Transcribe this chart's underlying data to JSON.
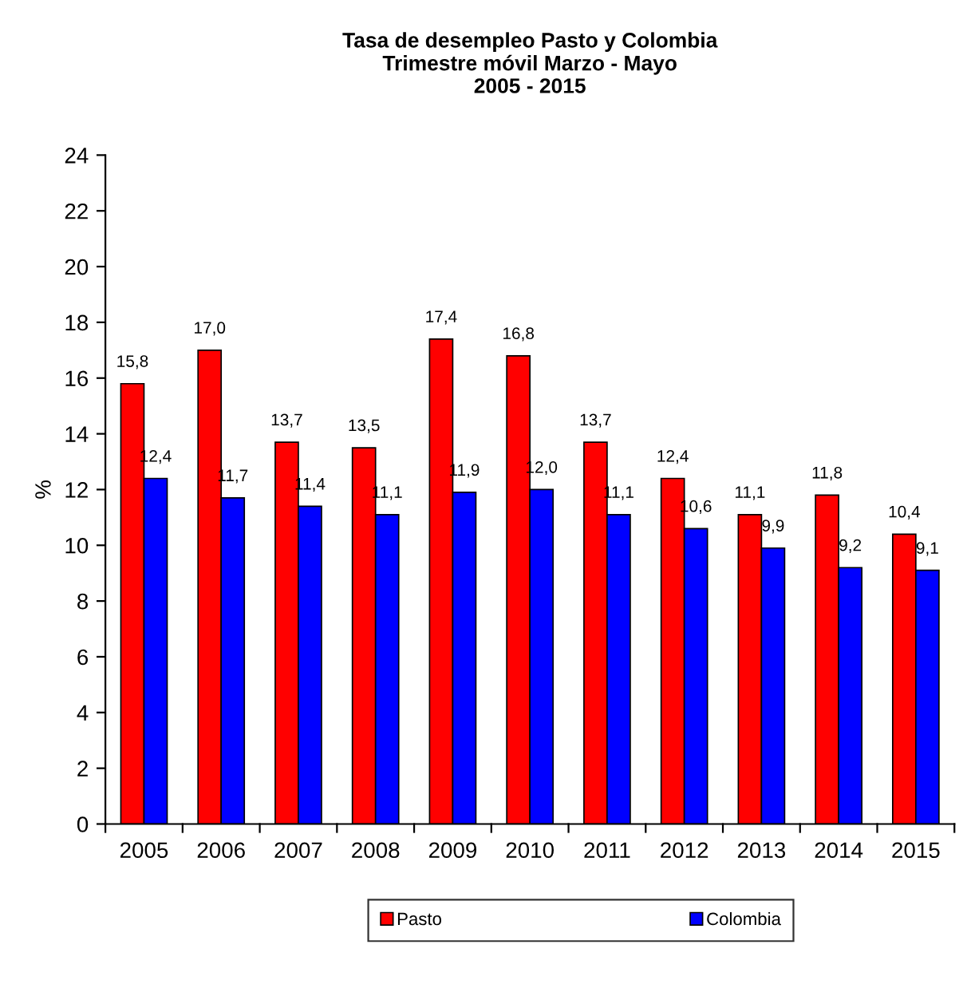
{
  "chart_data": {
    "type": "bar",
    "title": "Tasa de desempleo Pasto y Colombia\nTrimestre móvil Marzo - Mayo\n2005 - 2015",
    "ylabel": "%",
    "categories": [
      "2005",
      "2006",
      "2007",
      "2008",
      "2009",
      "2010",
      "2011",
      "2012",
      "2013",
      "2014",
      "2015"
    ],
    "series": [
      {
        "name": "Pasto",
        "color": "#ff0000",
        "values": [
          15.8,
          17.0,
          13.7,
          13.5,
          17.4,
          16.8,
          13.7,
          12.4,
          11.1,
          11.8,
          10.4
        ],
        "value_labels": [
          "15,8",
          "17,0",
          "13,7",
          "13,5",
          "17,4",
          "16,8",
          "13,7",
          "12,4",
          "11,1",
          "11,8",
          "10,4"
        ]
      },
      {
        "name": "Colombia",
        "color": "#0000ff",
        "values": [
          12.4,
          11.7,
          11.4,
          11.1,
          11.9,
          12.0,
          11.1,
          10.6,
          9.9,
          9.2,
          9.1
        ],
        "value_labels": [
          "12,4",
          "11,7",
          "11,4",
          "11,1",
          "11,9",
          "12,0",
          "11,1",
          "10,6",
          "9,9",
          "9,2",
          "9,1"
        ]
      }
    ],
    "ylim": [
      0,
      24
    ],
    "yticks": [
      0,
      2,
      4,
      6,
      8,
      10,
      12,
      14,
      16,
      18,
      20,
      22,
      24
    ],
    "grid": false,
    "legend": "bottom"
  }
}
